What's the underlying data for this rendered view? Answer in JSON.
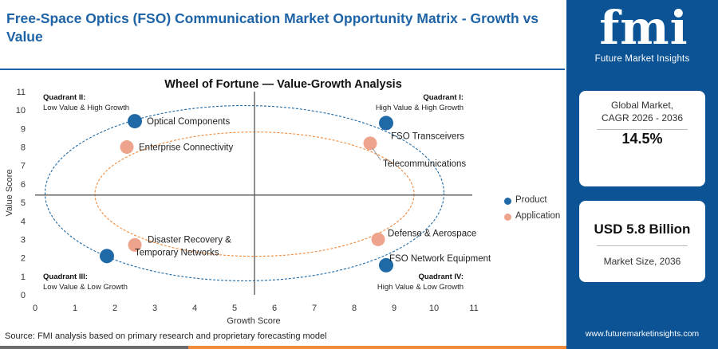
{
  "header": {
    "title": "Free-Space Optics (FSO) Communication Market Opportunity Matrix - Growth vs Value"
  },
  "sidebar": {
    "logo_text": "fmi",
    "logo_subtitle": "Future Market Insights",
    "card1": {
      "label": "Global Market, CAGR 2026 - 2036",
      "value": "14.5%"
    },
    "card2": {
      "value": "USD 5.8 Billion",
      "label": "Market Size, 2036"
    },
    "website": "www.futuremarketinsights.com"
  },
  "footer": {
    "source": "Source: FMI analysis based on primary research and proprietary forecasting model"
  },
  "colors": {
    "product": "#1f6aa6",
    "application": "#eea48c",
    "brand_blue": "#0b5394",
    "title_blue": "#1e63a6",
    "accent_orange": "#f08a3c"
  },
  "chart_data": {
    "type": "scatter",
    "title": "Wheel of Fortune — Value-Growth Analysis",
    "xlabel": "Growth Score",
    "ylabel": "Value Score",
    "xlim": [
      0,
      11
    ],
    "ylim": [
      0,
      11
    ],
    "xticks": [
      "0",
      "1",
      "2",
      "3",
      "4",
      "5",
      "6",
      "7",
      "8",
      "9",
      "10",
      "11"
    ],
    "yticks": [
      "0",
      "1",
      "2",
      "3",
      "4",
      "5",
      "6",
      "7",
      "8",
      "9",
      "10",
      "11"
    ],
    "divider_x": 5.5,
    "divider_y": 5.4,
    "legend": [
      "Product",
      "Application"
    ],
    "legend_position": "right",
    "quadrants": [
      {
        "title": "Quadrant II:",
        "subtitle": "Low Value & High Growth",
        "position": "top-left"
      },
      {
        "title": "Quadrant I:",
        "subtitle": "High Value & High Growth",
        "position": "top-right"
      },
      {
        "title": "Quadrant III:",
        "subtitle": "Low Value & Low Growth",
        "position": "bottom-left"
      },
      {
        "title": "Quadrant IV:",
        "subtitle": "High Value & Low Growth",
        "position": "bottom-right"
      }
    ],
    "points": [
      {
        "label": "Optical Components",
        "x": 2.5,
        "y": 9.4,
        "category": "Product"
      },
      {
        "label": "FSO Transceivers",
        "x": 8.8,
        "y": 9.3,
        "category": "Product"
      },
      {
        "label": "Enterprise Connectivity",
        "x": 2.3,
        "y": 8.0,
        "category": "Application"
      },
      {
        "label": "Telecommunications",
        "x": 8.4,
        "y": 8.2,
        "category": "Application"
      },
      {
        "label": "Disaster Recovery & Temporary Networks",
        "x": 2.5,
        "y": 2.7,
        "category": "Application"
      },
      {
        "label": "Defense & Aerospace",
        "x": 8.6,
        "y": 3.0,
        "category": "Application"
      },
      {
        "label": "FSO Network Equipment",
        "x": 8.8,
        "y": 1.6,
        "category": "Product"
      },
      {
        "label": "",
        "x": 1.8,
        "y": 2.1,
        "category": "Product"
      }
    ]
  }
}
